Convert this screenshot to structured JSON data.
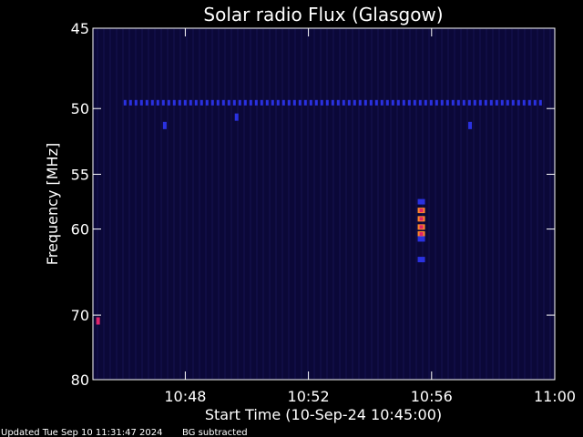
{
  "chart_data": {
    "type": "heatmap",
    "title": "Solar radio Flux (Glasgow)",
    "xlabel": "Start Time (10-Sep-24 10:45:00)",
    "ylabel": "Frequency [MHz]",
    "xlim": [
      "10:45",
      "11:00"
    ],
    "ylim": [
      80,
      45
    ],
    "y_scale": "reciprocal",
    "x_ticks": [
      "10:48",
      "10:52",
      "10:56",
      "11:00"
    ],
    "y_ticks": [
      45,
      50,
      55,
      60,
      70,
      80
    ],
    "background_color": "#0b0838",
    "colors": {
      "low": "#0b0838",
      "medium": "#2a31e0",
      "high": "#e0236a",
      "peak": "#ff8a2a"
    },
    "features": [
      {
        "label": "channel 49.6 MHz",
        "freq_mhz": 49.6,
        "time_start": "10:46",
        "time_end": "10:59:30",
        "level": "medium"
      },
      {
        "label": "burst",
        "time": "10:55:40",
        "freq_mhz": [
          58.2,
          59.0,
          59.8,
          60.5
        ],
        "level": "peak"
      },
      {
        "label": "burst-tail",
        "time": "10:55:40",
        "freq_mhz": [
          57.4,
          61.0,
          63.2
        ],
        "level": "medium"
      },
      {
        "label": "spot",
        "time": "10:45:10",
        "freq_mhz": 70.8,
        "level": "high"
      },
      {
        "label": "spot",
        "time": "10:47:20",
        "freq_mhz": 51.2,
        "level": "medium"
      },
      {
        "label": "spot",
        "time": "10:57:15",
        "freq_mhz": 51.2,
        "level": "medium"
      },
      {
        "label": "spot",
        "time": "10:49:40",
        "freq_mhz": 50.6,
        "level": "medium"
      }
    ]
  },
  "footer": {
    "updated": "Updated Tue Sep 10 11:31:47 2024",
    "note": "BG subtracted"
  }
}
